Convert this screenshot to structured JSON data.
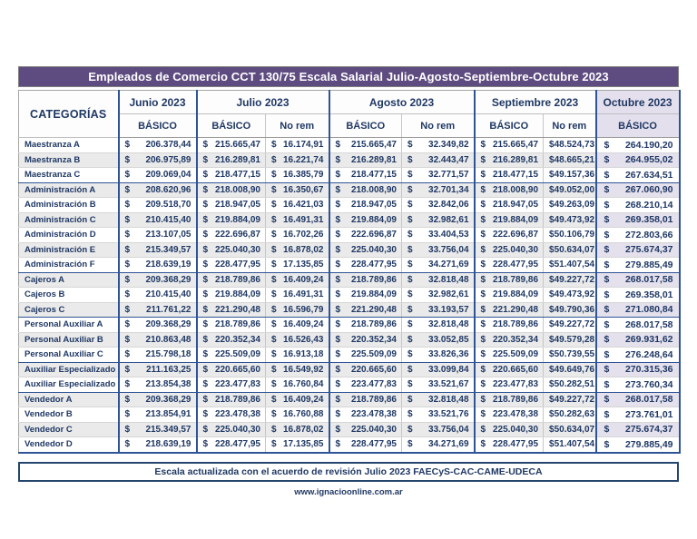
{
  "title": "Empleados de Comercio CCT 130/75 Escala Salarial Julio-Agosto-Septiembre-Octubre 2023",
  "table": {
    "categories_header": "CATEGORÍAS",
    "currency_symbol": "$",
    "month_groups": [
      {
        "label": "Junio 2023",
        "columns": [
          "BÁSICO"
        ]
      },
      {
        "label": "Julio 2023",
        "columns": [
          "BÁSICO",
          "No rem"
        ]
      },
      {
        "label": "Agosto 2023",
        "columns": [
          "BÁSICO",
          "No rem"
        ]
      },
      {
        "label": "Septiembre 2023",
        "columns": [
          "BÁSICO",
          "No rem"
        ]
      },
      {
        "label": "Octubre 2023",
        "columns": [
          "BÁSICO"
        ]
      }
    ],
    "rows": [
      {
        "category": "Maestranza A",
        "values": [
          "206.378,44",
          "215.665,47",
          "16.174,91",
          "215.665,47",
          "32.349,82",
          "215.665,47",
          "48.524,73",
          "264.190,20"
        ],
        "group_end": false
      },
      {
        "category": "Maestranza B",
        "values": [
          "206.975,89",
          "216.289,81",
          "16.221,74",
          "216.289,81",
          "32.443,47",
          "216.289,81",
          "48.665,21",
          "264.955,02"
        ],
        "group_end": false
      },
      {
        "category": "Maestranza C",
        "values": [
          "209.069,04",
          "218.477,15",
          "16.385,79",
          "218.477,15",
          "32.771,57",
          "218.477,15",
          "49.157,36",
          "267.634,51"
        ],
        "group_end": true
      },
      {
        "category": "Administración A",
        "values": [
          "208.620,96",
          "218.008,90",
          "16.350,67",
          "218.008,90",
          "32.701,34",
          "218.008,90",
          "49.052,00",
          "267.060,90"
        ],
        "group_end": false
      },
      {
        "category": "Administración B",
        "values": [
          "209.518,70",
          "218.947,05",
          "16.421,03",
          "218.947,05",
          "32.842,06",
          "218.947,05",
          "49.263,09",
          "268.210,14"
        ],
        "group_end": false
      },
      {
        "category": "Administración C",
        "values": [
          "210.415,40",
          "219.884,09",
          "16.491,31",
          "219.884,09",
          "32.982,61",
          "219.884,09",
          "49.473,92",
          "269.358,01"
        ],
        "group_end": false
      },
      {
        "category": "Administración D",
        "values": [
          "213.107,05",
          "222.696,87",
          "16.702,26",
          "222.696,87",
          "33.404,53",
          "222.696,87",
          "50.106,79",
          "272.803,66"
        ],
        "group_end": false
      },
      {
        "category": "Administración E",
        "values": [
          "215.349,57",
          "225.040,30",
          "16.878,02",
          "225.040,30",
          "33.756,04",
          "225.040,30",
          "50.634,07",
          "275.674,37"
        ],
        "group_end": false
      },
      {
        "category": "Administración F",
        "values": [
          "218.639,19",
          "228.477,95",
          "17.135,85",
          "228.477,95",
          "34.271,69",
          "228.477,95",
          "51.407,54",
          "279.885,49"
        ],
        "group_end": true
      },
      {
        "category": "Cajeros A",
        "values": [
          "209.368,29",
          "218.789,86",
          "16.409,24",
          "218.789,86",
          "32.818,48",
          "218.789,86",
          "49.227,72",
          "268.017,58"
        ],
        "group_end": false
      },
      {
        "category": "Cajeros B",
        "values": [
          "210.415,40",
          "219.884,09",
          "16.491,31",
          "219.884,09",
          "32.982,61",
          "219.884,09",
          "49.473,92",
          "269.358,01"
        ],
        "group_end": false
      },
      {
        "category": "Cajeros C",
        "values": [
          "211.761,22",
          "221.290,48",
          "16.596,79",
          "221.290,48",
          "33.193,57",
          "221.290,48",
          "49.790,36",
          "271.080,84"
        ],
        "group_end": true
      },
      {
        "category": "Personal Auxiliar A",
        "values": [
          "209.368,29",
          "218.789,86",
          "16.409,24",
          "218.789,86",
          "32.818,48",
          "218.789,86",
          "49.227,72",
          "268.017,58"
        ],
        "group_end": false
      },
      {
        "category": "Personal Auxiliar B",
        "values": [
          "210.863,48",
          "220.352,34",
          "16.526,43",
          "220.352,34",
          "33.052,85",
          "220.352,34",
          "49.579,28",
          "269.931,62"
        ],
        "group_end": false
      },
      {
        "category": "Personal Auxiliar C",
        "values": [
          "215.798,18",
          "225.509,09",
          "16.913,18",
          "225.509,09",
          "33.826,36",
          "225.509,09",
          "50.739,55",
          "276.248,64"
        ],
        "group_end": true
      },
      {
        "category": "Auxiliar Especializado A",
        "values": [
          "211.163,25",
          "220.665,60",
          "16.549,92",
          "220.665,60",
          "33.099,84",
          "220.665,60",
          "49.649,76",
          "270.315,36"
        ],
        "group_end": false
      },
      {
        "category": "Auxiliar Especializado B",
        "values": [
          "213.854,38",
          "223.477,83",
          "16.760,84",
          "223.477,83",
          "33.521,67",
          "223.477,83",
          "50.282,51",
          "273.760,34"
        ],
        "group_end": true
      },
      {
        "category": "Vendedor A",
        "values": [
          "209.368,29",
          "218.789,86",
          "16.409,24",
          "218.789,86",
          "32.818,48",
          "218.789,86",
          "49.227,72",
          "268.017,58"
        ],
        "group_end": false
      },
      {
        "category": "Vendedor B",
        "values": [
          "213.854,91",
          "223.478,38",
          "16.760,88",
          "223.478,38",
          "33.521,76",
          "223.478,38",
          "50.282,63",
          "273.761,01"
        ],
        "group_end": false
      },
      {
        "category": "Vendedor C",
        "values": [
          "215.349,57",
          "225.040,30",
          "16.878,02",
          "225.040,30",
          "33.756,04",
          "225.040,30",
          "50.634,07",
          "275.674,37"
        ],
        "group_end": false
      },
      {
        "category": "Vendedor D",
        "values": [
          "218.639,19",
          "228.477,95",
          "17.135,85",
          "228.477,95",
          "34.271,69",
          "228.477,95",
          "51.407,54",
          "279.885,49"
        ],
        "group_end": false
      }
    ]
  },
  "footer": {
    "note": "Escala actualizada con el acuerdo de revisión Julio 2023 FAECyS-CAC-CAME-UDECA",
    "website": "www.ignacioonline.com.ar"
  },
  "colors": {
    "title_bg": "#5E4B80",
    "text_navy": "#1F3864",
    "group_border": "#2F5496",
    "stripe_gray": "#EAEAEA",
    "octubre_bg": "#E4DFEC"
  }
}
